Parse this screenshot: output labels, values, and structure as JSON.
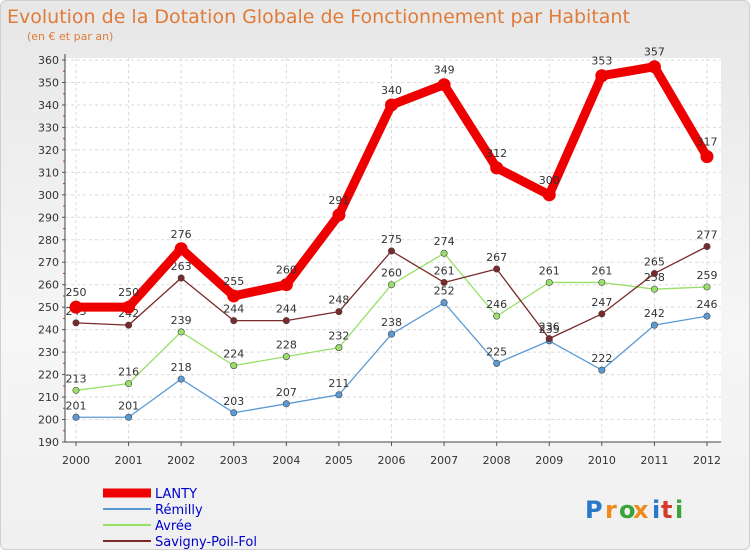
{
  "chart_data": {
    "type": "line",
    "title": "Evolution de la Dotation Globale de Fonctionnement par Habitant",
    "subtitle": "(en € et par an)",
    "xlabel": "",
    "ylabel": "",
    "ylim": [
      190,
      360
    ],
    "y_ticks": [
      190,
      200,
      210,
      220,
      230,
      240,
      250,
      260,
      270,
      280,
      290,
      300,
      310,
      320,
      330,
      340,
      350,
      360
    ],
    "x": [
      "2000",
      "2001",
      "2002",
      "2003",
      "2004",
      "2005",
      "2006",
      "2007",
      "2008",
      "2009",
      "2010",
      "2011",
      "2012"
    ],
    "series": [
      {
        "name": "LANTY",
        "color": "#ee0000",
        "values": [
          250,
          250,
          276,
          255,
          260,
          291,
          340,
          349,
          312,
          300,
          353,
          357,
          317
        ]
      },
      {
        "name": "Rémilly",
        "color": "#5b9bd5",
        "values": [
          201,
          201,
          218,
          203,
          207,
          211,
          238,
          252,
          225,
          235,
          222,
          242,
          246
        ]
      },
      {
        "name": "Avrée",
        "color": "#99e06a",
        "values": [
          213,
          216,
          239,
          224,
          228,
          232,
          260,
          274,
          246,
          261,
          261,
          258,
          259
        ]
      },
      {
        "name": "Savigny-Poil-Fol",
        "color": "#7a2a2a",
        "values": [
          243,
          242,
          263,
          244,
          244,
          248,
          275,
          261,
          267,
          236,
          247,
          265,
          277
        ]
      }
    ],
    "grid": true,
    "legend": "bottom-left"
  },
  "logo": {
    "letters": [
      "P",
      "r",
      "o",
      "x",
      "i",
      "t",
      "i"
    ],
    "colors": [
      "#2a78c8",
      "#f08a1c",
      "#3aa33a",
      "#f08a1c",
      "#2a78c8",
      "#d33b2c",
      "#3aa33a"
    ]
  }
}
